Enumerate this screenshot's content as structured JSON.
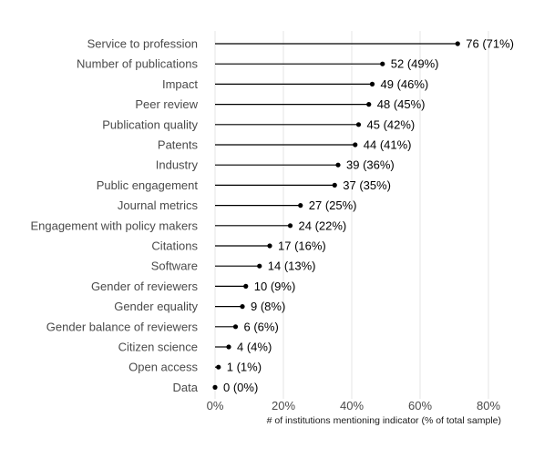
{
  "chart_data": {
    "type": "bar",
    "orientation": "horizontal",
    "style": "lollipop",
    "xlabel": "# of institutions mentioning indicator (% of total sample)",
    "ylabel": "",
    "xlim": [
      0,
      80
    ],
    "x_ticks": [
      0,
      20,
      40,
      60,
      80
    ],
    "x_tick_labels": [
      "0%",
      "20%",
      "40%",
      "60%",
      "80%"
    ],
    "grid": "vertical",
    "categories": [
      "Service to profession",
      "Number of publications",
      "Impact",
      "Peer review",
      "Publication quality",
      "Patents",
      "Industry",
      "Public engagement",
      "Journal metrics",
      "Engagement with policy makers",
      "Citations",
      "Software",
      "Gender of reviewers",
      "Gender equality",
      "Gender balance of reviewers",
      "Citizen science",
      "Open access",
      "Data"
    ],
    "counts": [
      76,
      52,
      49,
      48,
      45,
      44,
      39,
      37,
      27,
      24,
      17,
      14,
      10,
      9,
      6,
      4,
      1,
      0
    ],
    "percents": [
      71,
      49,
      46,
      45,
      42,
      41,
      36,
      35,
      25,
      22,
      16,
      13,
      9,
      8,
      6,
      4,
      1,
      0
    ],
    "value_labels": [
      "76 (71%)",
      "52 (49%)",
      "49 (46%)",
      "48 (45%)",
      "45 (42%)",
      "44 (41%)",
      "39 (36%)",
      "37 (35%)",
      "27 (25%)",
      "24 (22%)",
      "17 (16%)",
      "14 (13%)",
      "10 (9%)",
      "9 (8%)",
      "6 (6%)",
      "4 (4%)",
      "1 (1%)",
      "0 (0%)"
    ],
    "colors": {
      "stem": "#000000",
      "dot": "#000000",
      "grid": "#e6e6e6",
      "category_text": "#4a4a4a",
      "value_text": "#000000"
    }
  }
}
